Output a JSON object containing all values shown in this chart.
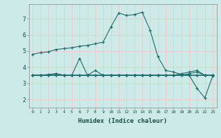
{
  "xlabel": "Humidex (Indice chaleur)",
  "ylabel": "",
  "bg_color": "#cceae7",
  "line_color": "#1a6b6b",
  "grid_color": "#e8d0d0",
  "xlim": [
    -0.5,
    23.5
  ],
  "ylim": [
    1.5,
    7.9
  ],
  "yticks": [
    2,
    3,
    4,
    5,
    6,
    7
  ],
  "xticks": [
    0,
    1,
    2,
    3,
    4,
    5,
    6,
    7,
    8,
    9,
    10,
    11,
    12,
    13,
    14,
    15,
    16,
    17,
    18,
    19,
    20,
    21,
    22,
    23
  ],
  "series": [
    {
      "x": [
        0,
        1,
        2,
        3,
        4,
        5,
        6,
        7,
        8,
        9,
        10,
        11,
        12,
        13,
        14,
        15,
        16,
        17,
        18,
        19,
        20,
        21,
        22,
        23
      ],
      "y": [
        4.8,
        4.9,
        4.95,
        5.1,
        5.15,
        5.2,
        5.3,
        5.35,
        5.45,
        5.55,
        6.5,
        7.35,
        7.2,
        7.25,
        7.4,
        6.3,
        4.65,
        3.8,
        3.7,
        3.55,
        3.5,
        2.7,
        2.1,
        3.45
      ]
    },
    {
      "x": [
        0,
        1,
        2,
        3,
        4,
        5,
        6,
        7,
        8,
        9,
        10,
        11,
        12,
        13,
        14,
        15,
        16,
        17,
        18,
        19,
        20,
        21,
        22,
        23
      ],
      "y": [
        3.5,
        3.5,
        3.55,
        3.6,
        3.5,
        3.5,
        4.55,
        3.5,
        3.5,
        3.5,
        3.5,
        3.5,
        3.5,
        3.5,
        3.5,
        3.5,
        3.5,
        3.5,
        3.5,
        3.5,
        3.5,
        3.5,
        3.5,
        3.5
      ]
    },
    {
      "x": [
        0,
        1,
        2,
        3,
        4,
        5,
        6,
        7,
        8,
        9,
        10,
        11,
        12,
        13,
        14,
        15,
        16,
        17,
        18,
        19,
        20,
        21,
        22,
        23
      ],
      "y": [
        3.5,
        3.5,
        3.5,
        3.6,
        3.5,
        3.5,
        3.5,
        3.5,
        3.8,
        3.5,
        3.5,
        3.5,
        3.5,
        3.5,
        3.5,
        3.5,
        3.5,
        3.5,
        3.5,
        3.5,
        3.5,
        3.5,
        3.5,
        3.5
      ]
    },
    {
      "x": [
        0,
        1,
        2,
        3,
        4,
        5,
        6,
        7,
        8,
        9,
        10,
        11,
        12,
        13,
        14,
        15,
        16,
        17,
        18,
        19,
        20,
        21,
        22,
        23
      ],
      "y": [
        3.5,
        3.5,
        3.5,
        3.5,
        3.5,
        3.5,
        3.5,
        3.5,
        3.5,
        3.5,
        3.5,
        3.5,
        3.5,
        3.5,
        3.5,
        3.5,
        3.5,
        3.5,
        3.5,
        3.6,
        3.7,
        3.8,
        3.5,
        3.5
      ]
    },
    {
      "x": [
        0,
        1,
        2,
        3,
        4,
        5,
        6,
        7,
        8,
        9,
        10,
        11,
        12,
        13,
        14,
        15,
        16,
        17,
        18,
        19,
        20,
        21,
        22,
        23
      ],
      "y": [
        3.5,
        3.5,
        3.5,
        3.5,
        3.5,
        3.5,
        3.5,
        3.5,
        3.5,
        3.5,
        3.5,
        3.5,
        3.5,
        3.5,
        3.5,
        3.5,
        3.5,
        3.5,
        3.5,
        3.5,
        3.6,
        3.7,
        3.5,
        3.5
      ]
    }
  ]
}
